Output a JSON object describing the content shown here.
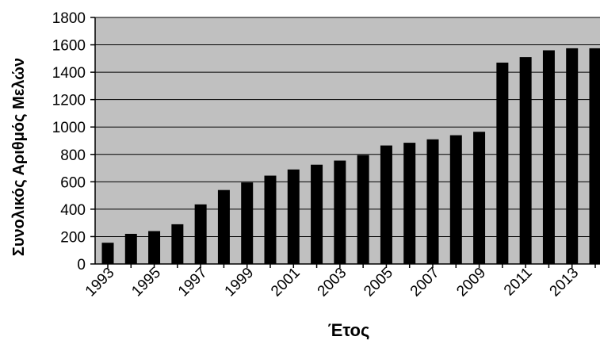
{
  "chart_data": {
    "type": "bar",
    "title": "",
    "xlabel": "Έτος",
    "ylabel": "Συνολικός Αριθμός Μελών",
    "categories": [
      "1993",
      "1994",
      "1995",
      "1996",
      "1997",
      "1998",
      "1999",
      "2000",
      "2001",
      "2002",
      "2003",
      "2004",
      "2005",
      "2006",
      "2007",
      "2008",
      "2009",
      "2010",
      "2011",
      "2012",
      "2013",
      "2014"
    ],
    "x_tick_labels": [
      "1993",
      "1995",
      "1997",
      "1999",
      "2001",
      "2003",
      "2005",
      "2007",
      "2009",
      "2011",
      "2013"
    ],
    "values": [
      155,
      220,
      240,
      290,
      435,
      540,
      595,
      645,
      690,
      725,
      755,
      795,
      865,
      885,
      910,
      940,
      965,
      1470,
      1510,
      1560,
      1575,
      1575
    ],
    "ylim": [
      0,
      1800
    ],
    "y_ticks": [
      0,
      200,
      400,
      600,
      800,
      1000,
      1200,
      1400,
      1600,
      1800
    ],
    "grid": true,
    "colors": {
      "plot_background": "#c0c0c0",
      "bar": "#000000",
      "gridline": "#000000"
    }
  }
}
